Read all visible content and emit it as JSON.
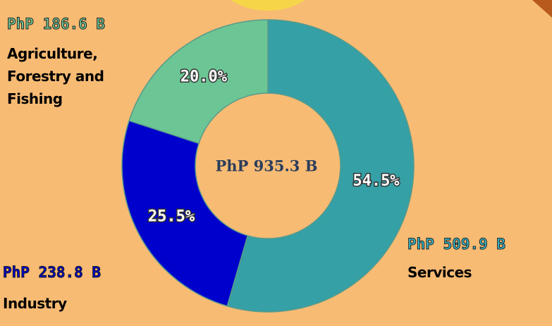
{
  "chart_data": {
    "type": "donut",
    "categories": [
      "Services",
      "Industry",
      "Agriculture, Forestry and Fishing"
    ],
    "values": [
      54.5,
      25.5,
      20.0
    ],
    "value_labels": [
      "54.5%",
      "25.5%",
      "20.0%"
    ],
    "amounts": [
      "PhP 509.9 B",
      "PhP 238.8 B",
      "PhP 186.6 B"
    ],
    "colors": [
      "#35a0a5",
      "#0000cc",
      "#6cc594"
    ],
    "center_label": "PhP 935.3 B"
  }
}
